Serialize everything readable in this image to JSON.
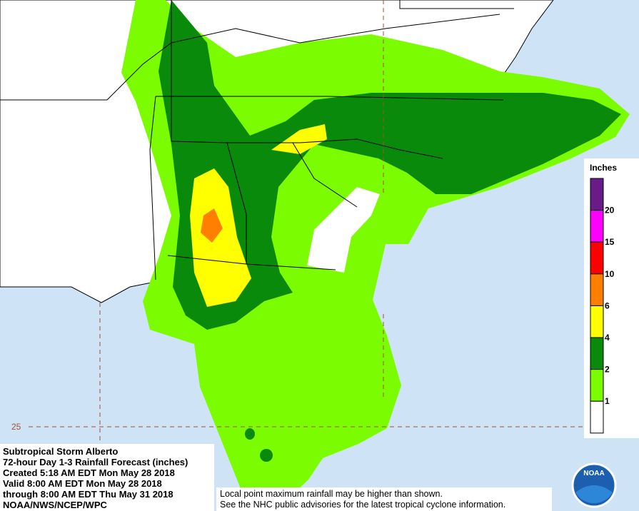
{
  "info": {
    "lines": [
      "Subtropical Storm Alberto",
      "72-hour Day 1-3 Rainfall Forecast (inches)",
      "Created 5:18 AM EDT Mon May 28 2018",
      "Valid 8:00 AM EDT Mon May 28 2018",
      "through 8:00 AM EDT Thu May 31 2018",
      "NOAA/NWS/NCEP/WPC"
    ]
  },
  "notes": [
    "Local point maximum rainfall may be higher than shown.",
    "See the NHC public advisories for the latest tropical cyclone information."
  ],
  "latitude_label": "25",
  "logo": "NOAA",
  "legend": {
    "title": "Inches",
    "colors": [
      "#6a1b8a",
      "#ff00ff",
      "#ff0000",
      "#ff8000",
      "#ffff00",
      "#0a8a0a",
      "#7cfc00",
      "#ffffff"
    ],
    "labels": [
      "20",
      "15",
      "10",
      "6",
      "4",
      "2",
      "1"
    ]
  }
}
